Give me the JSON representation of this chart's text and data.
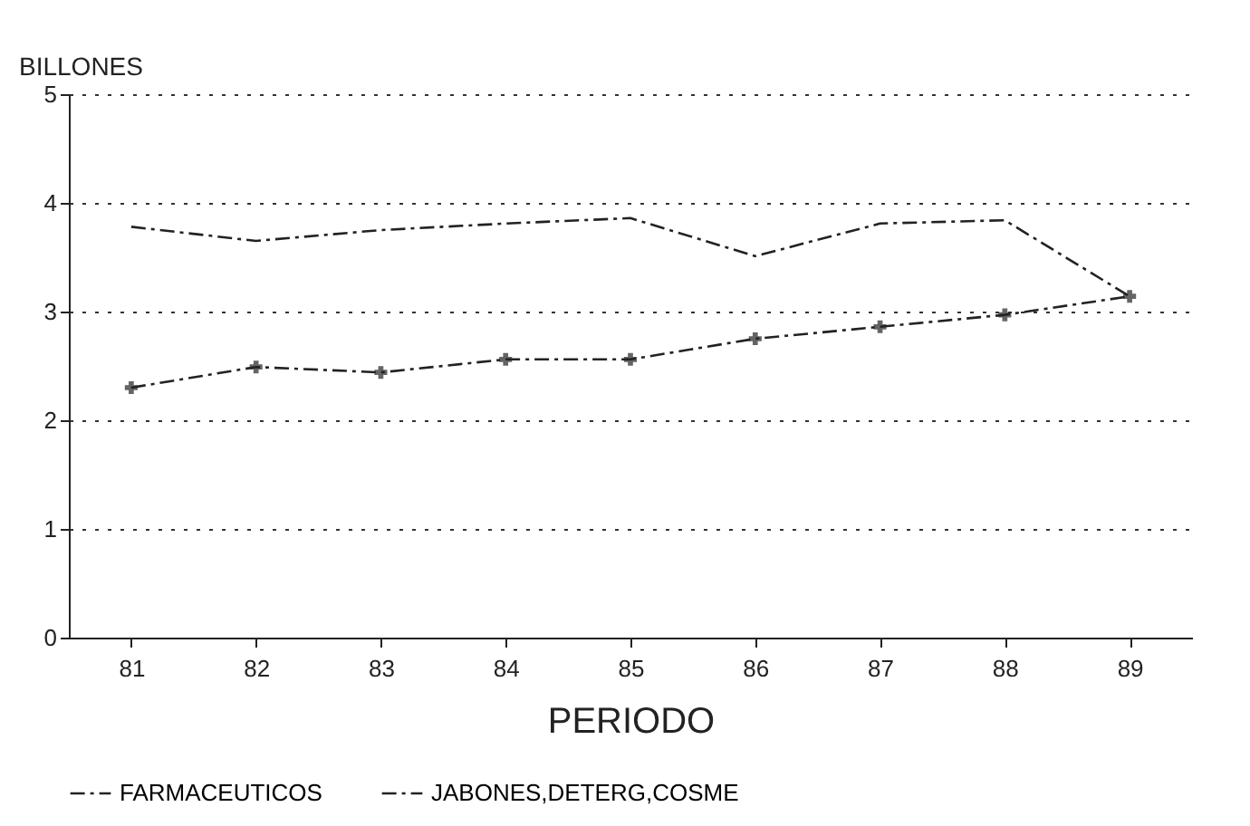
{
  "chart_data": {
    "type": "line",
    "xlabel": "PERIODO",
    "ylabel": "BILLONES",
    "categories": [
      "81",
      "82",
      "83",
      "84",
      "85",
      "86",
      "87",
      "88",
      "89"
    ],
    "series": [
      {
        "name": "FARMACEUTICOS",
        "color": "#222222",
        "line_style": "dashed",
        "marker": "none",
        "values": [
          3.78,
          3.65,
          3.75,
          3.81,
          3.86,
          3.51,
          3.81,
          3.84,
          3.14
        ]
      },
      {
        "name": "JABONES,DETERG,COSME",
        "color": "#222222",
        "line_style": "dashed",
        "marker": "cross",
        "values": [
          2.3,
          2.49,
          2.44,
          2.56,
          2.56,
          2.75,
          2.86,
          2.97,
          3.14
        ]
      }
    ],
    "ylim": [
      0,
      5
    ],
    "yticks": [
      0,
      1,
      2,
      3,
      4,
      5
    ],
    "grid": "y",
    "legend": "bottom"
  }
}
